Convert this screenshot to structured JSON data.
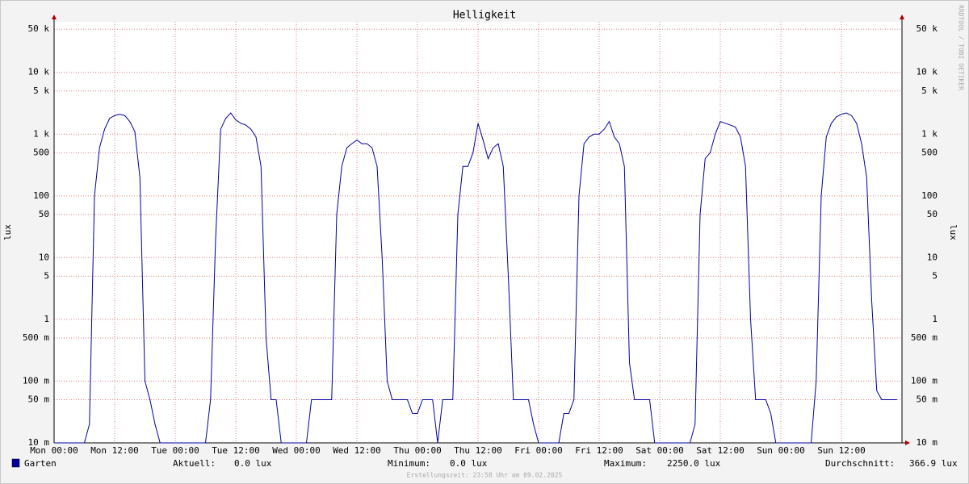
{
  "chart_data": {
    "type": "line",
    "title": "Helligkeit",
    "y_label": "lux",
    "watermark": "RRDTOOL / TOBI OETIKER",
    "log_scale": true,
    "grid": true,
    "xlim": [
      0,
      168
    ],
    "xticks": [
      {
        "value": 0,
        "label": "Mon 00:00"
      },
      {
        "value": 12,
        "label": "Mon 12:00"
      },
      {
        "value": 24,
        "label": "Tue 00:00"
      },
      {
        "value": 36,
        "label": "Tue 12:00"
      },
      {
        "value": 48,
        "label": "Wed 00:00"
      },
      {
        "value": 60,
        "label": "Wed 12:00"
      },
      {
        "value": 72,
        "label": "Thu 00:00"
      },
      {
        "value": 84,
        "label": "Thu 12:00"
      },
      {
        "value": 96,
        "label": "Fri 00:00"
      },
      {
        "value": 108,
        "label": "Fri 12:00"
      },
      {
        "value": 120,
        "label": "Sat 00:00"
      },
      {
        "value": 132,
        "label": "Sat 12:00"
      },
      {
        "value": 144,
        "label": "Sun 00:00"
      },
      {
        "value": 156,
        "label": "Sun 12:00"
      }
    ],
    "ylim": [
      0.01,
      66000
    ],
    "yticks": [
      {
        "value": 0.01,
        "label": "10 m"
      },
      {
        "value": 0.05,
        "label": "50 m"
      },
      {
        "value": 0.1,
        "label": "100 m"
      },
      {
        "value": 0.5,
        "label": "500 m"
      },
      1,
      5,
      10,
      50,
      100,
      500,
      {
        "value": 1000,
        "label": "1 k"
      },
      {
        "value": 5000,
        "label": "5 k"
      },
      {
        "value": 10000,
        "label": "10 k"
      },
      {
        "value": 50000,
        "label": "50 k"
      }
    ],
    "x": [
      0,
      1,
      2,
      3,
      4,
      5,
      6,
      7,
      8,
      9,
      10,
      11,
      12,
      13,
      14,
      15,
      16,
      17,
      18,
      19,
      20,
      21,
      22,
      23,
      24,
      25,
      26,
      27,
      28,
      29,
      30,
      31,
      32,
      33,
      34,
      35,
      36,
      37,
      38,
      39,
      40,
      41,
      42,
      43,
      44,
      45,
      46,
      47,
      48,
      49,
      50,
      51,
      52,
      53,
      54,
      55,
      56,
      57,
      58,
      59,
      60,
      61,
      62,
      63,
      64,
      65,
      66,
      67,
      68,
      69,
      70,
      71,
      72,
      73,
      74,
      75,
      76,
      77,
      78,
      79,
      80,
      81,
      82,
      83,
      84,
      85,
      86,
      87,
      88,
      89,
      90,
      91,
      92,
      93,
      94,
      95,
      96,
      97,
      98,
      99,
      100,
      101,
      102,
      103,
      104,
      105,
      106,
      107,
      108,
      109,
      110,
      111,
      112,
      113,
      114,
      115,
      116,
      117,
      118,
      119,
      120,
      121,
      122,
      123,
      124,
      125,
      126,
      127,
      128,
      129,
      130,
      131,
      132,
      133,
      134,
      135,
      136,
      137,
      138,
      139,
      140,
      141,
      142,
      143,
      144,
      145,
      146,
      147,
      148,
      149,
      150,
      151,
      152,
      153,
      154,
      155,
      156,
      157,
      158,
      159,
      160,
      161,
      162,
      163,
      164,
      165,
      166,
      167
    ],
    "series": [
      {
        "name": "Garten",
        "color": "#0000a0",
        "values": [
          0,
          0,
          0,
          0,
          0,
          0,
          0,
          0.02,
          100,
          600,
          1200,
          1800,
          2000,
          2100,
          2000,
          1600,
          1100,
          200,
          0.1,
          0.05,
          0.02,
          0,
          0,
          0,
          0,
          0,
          0,
          0,
          0,
          0,
          0,
          0.05,
          20,
          1200,
          1800,
          2200,
          1700,
          1500,
          1400,
          1200,
          900,
          300,
          0.5,
          0.05,
          0.05,
          0,
          0,
          0,
          0,
          0,
          0,
          0.05,
          0.05,
          0.05,
          0.05,
          0.05,
          50,
          300,
          600,
          700,
          800,
          700,
          700,
          600,
          300,
          10,
          0.1,
          0.05,
          0.05,
          0.05,
          0.05,
          0.03,
          0.03,
          0.05,
          0.05,
          0.05,
          0,
          0.05,
          0.05,
          0.05,
          50,
          300,
          300,
          500,
          1500,
          800,
          400,
          600,
          700,
          300,
          5,
          0.05,
          0.05,
          0.05,
          0.05,
          0.02,
          0,
          0,
          0,
          0,
          0,
          0.03,
          0.03,
          0.05,
          100,
          700,
          900,
          1000,
          1000,
          1200,
          1600,
          900,
          700,
          300,
          0.2,
          0.05,
          0.05,
          0.05,
          0.05,
          0,
          0,
          0,
          0,
          0,
          0,
          0,
          0,
          0.02,
          50,
          400,
          500,
          1000,
          1600,
          1500,
          1400,
          1300,
          900,
          300,
          1,
          0.05,
          0.05,
          0.05,
          0.03,
          0,
          0,
          0,
          0,
          0,
          0,
          0,
          0,
          0.1,
          100,
          900,
          1500,
          1900,
          2100,
          2200,
          2000,
          1500,
          700,
          200,
          2,
          0.07,
          0.05,
          0.05,
          0.05,
          0.05
        ]
      }
    ],
    "stats": [
      {
        "label": "Aktuell:",
        "value": "0.0 lux"
      },
      {
        "label": "Minimum:",
        "value": "0.0 lux"
      },
      {
        "label": "Maximum:",
        "value": "2250.0 lux"
      },
      {
        "label": "Durchschnitt:",
        "value": "366.9 lux"
      }
    ],
    "footer": "Erstellungszeit: 23:58 Uhr am 09.02.2025"
  }
}
